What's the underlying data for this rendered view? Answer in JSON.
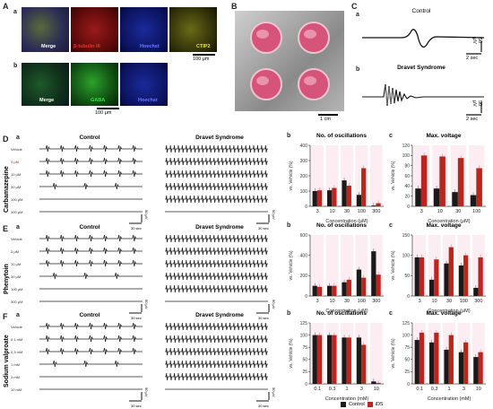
{
  "panels": {
    "A_label": "A",
    "A_a": "a",
    "A_b": "b",
    "B_label": "B",
    "C_label": "C",
    "C_a": "a",
    "C_b": "b",
    "D_label": "D",
    "E_label": "E",
    "F_label": "F",
    "sub_a": "a",
    "sub_b": "b",
    "sub_c": "c"
  },
  "micro_labels": {
    "merge": "Merge",
    "beta3": "β-tubulin III",
    "hoechst": "Hoechst",
    "ctip2": "CTIP2",
    "gaba": "GABA",
    "scale_100": "100 μm",
    "scale_1cm": "1 cm"
  },
  "trace_labels": {
    "control": "Control",
    "dravet": "Dravet Syndrome",
    "uv_50": "50 μV",
    "sec_2": "2 sec",
    "sec_30": "30 sec"
  },
  "drugs": [
    "Carbamazepine",
    "Phenytoin",
    "Sodium valproate"
  ],
  "rows": {
    "D": [
      "Vehicle",
      "3 μM",
      "10 μM",
      "30 μM",
      "100 μM",
      "300 μM"
    ],
    "E": [
      "Vehicle",
      "3 μM",
      "10 μM",
      "30 μM",
      "100 μM",
      "300 μM"
    ],
    "F": [
      "Vehicle",
      "0.1 mM",
      "0.3 mM",
      "1 mM",
      "3 mM",
      "10 mM"
    ]
  },
  "chart_titles": {
    "oscillations": "No. of oscillations",
    "voltage": "Max. voltage"
  },
  "axis": {
    "ylabel": "vs. Vehicle (%)",
    "x_um": "Concentration (μM)",
    "x_mm": "Concentration (mM)"
  },
  "legend": {
    "control": "Control",
    "ids": "iDS"
  },
  "colors": {
    "control": "#1a1a1a",
    "ids": "#b8261d",
    "pink": "#f6d6e2"
  },
  "chart_data": [
    {
      "type": "bar",
      "id": "D_b",
      "title": "No. of oscillations",
      "categories": [
        "3",
        "10",
        "30",
        "100",
        "300"
      ],
      "ylim": [
        0,
        400
      ],
      "yticks": [
        0,
        100,
        200,
        300,
        400
      ],
      "series": [
        {
          "name": "Control",
          "values": [
            100,
            105,
            170,
            75,
            5
          ]
        },
        {
          "name": "iDS",
          "values": [
            105,
            120,
            135,
            250,
            20
          ]
        }
      ]
    },
    {
      "type": "bar",
      "id": "D_c",
      "title": "Max. voltage",
      "categories": [
        "3",
        "10",
        "30",
        "100"
      ],
      "ylim": [
        0,
        120
      ],
      "yticks": [
        0,
        20,
        40,
        60,
        80,
        100,
        120
      ],
      "series": [
        {
          "name": "Control",
          "values": [
            35,
            35,
            28,
            22
          ]
        },
        {
          "name": "iDS",
          "values": [
            100,
            98,
            95,
            75
          ]
        }
      ]
    },
    {
      "type": "bar",
      "id": "E_b",
      "title": "No. of oscillations",
      "categories": [
        "3",
        "10",
        "30",
        "100",
        "300"
      ],
      "ylim": [
        0,
        600
      ],
      "yticks": [
        0,
        200,
        400,
        600
      ],
      "series": [
        {
          "name": "Control",
          "values": [
            100,
            100,
            135,
            260,
            440
          ]
        },
        {
          "name": "iDS",
          "values": [
            90,
            100,
            160,
            180,
            210
          ]
        }
      ]
    },
    {
      "type": "bar",
      "id": "E_c",
      "title": "Max. voltage",
      "categories": [
        "3",
        "10",
        "30",
        "100",
        "300"
      ],
      "ylim": [
        0,
        150
      ],
      "yticks": [
        0,
        50,
        100,
        150
      ],
      "series": [
        {
          "name": "Control",
          "values": [
            95,
            40,
            80,
            75,
            20
          ]
        },
        {
          "name": "iDS",
          "values": [
            95,
            90,
            120,
            100,
            95
          ]
        }
      ]
    },
    {
      "type": "bar",
      "id": "F_b",
      "title": "No. of oscillations",
      "categories": [
        "0.1",
        "0.3",
        "1",
        "3",
        "10"
      ],
      "ylim": [
        0,
        125
      ],
      "yticks": [
        0,
        25,
        50,
        75,
        100,
        125
      ],
      "series": [
        {
          "name": "Control",
          "values": [
            100,
            100,
            95,
            95,
            5
          ]
        },
        {
          "name": "iDS",
          "values": [
            100,
            100,
            95,
            80,
            2
          ]
        }
      ]
    },
    {
      "type": "bar",
      "id": "F_c",
      "title": "Max. voltage",
      "categories": [
        "0.1",
        "0.3",
        "1",
        "3",
        "10"
      ],
      "ylim": [
        0,
        125
      ],
      "yticks": [
        0,
        25,
        50,
        75,
        100,
        125
      ],
      "series": [
        {
          "name": "Control",
          "values": [
            90,
            85,
            70,
            65,
            55
          ]
        },
        {
          "name": "iDS",
          "values": [
            105,
            105,
            100,
            85,
            65
          ]
        }
      ]
    }
  ]
}
